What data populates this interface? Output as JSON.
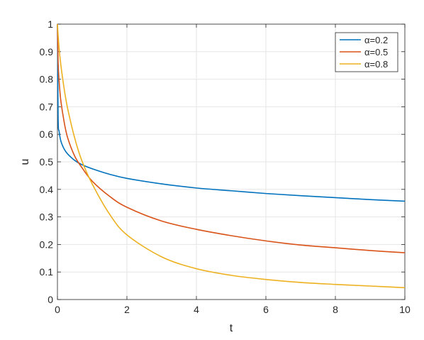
{
  "chart_data": {
    "type": "line",
    "title": "",
    "xlabel": "t",
    "ylabel": "u",
    "xlim": [
      0,
      10
    ],
    "ylim": [
      0,
      1
    ],
    "grid": true,
    "legend_position": "top-right",
    "x_ticks": [
      "0",
      "2",
      "4",
      "6",
      "8",
      "10"
    ],
    "y_ticks": [
      "0",
      "0.1",
      "0.2",
      "0.3",
      "0.4",
      "0.5",
      "0.6",
      "0.7",
      "0.8",
      "0.9",
      "1"
    ],
    "x": [
      0,
      0.02,
      0.05,
      0.1,
      0.2,
      0.3,
      0.5,
      0.7,
      1,
      1.5,
      2,
      3,
      4,
      5,
      6,
      7,
      8,
      9,
      10
    ],
    "series": [
      {
        "name": "α=0.2",
        "color": "#0072BD",
        "values": [
          1.0,
          0.66,
          0.61,
          0.575,
          0.545,
          0.528,
          0.505,
          0.49,
          0.475,
          0.455,
          0.44,
          0.42,
          0.405,
          0.395,
          0.385,
          0.377,
          0.37,
          0.363,
          0.357
        ]
      },
      {
        "name": "α=0.5",
        "color": "#D95319",
        "values": [
          1.0,
          0.86,
          0.79,
          0.72,
          0.64,
          0.585,
          0.52,
          0.48,
          0.43,
          0.375,
          0.335,
          0.285,
          0.255,
          0.232,
          0.213,
          0.198,
          0.188,
          0.178,
          0.17
        ]
      },
      {
        "name": "α=0.8",
        "color": "#EDB120",
        "values": [
          1.0,
          0.96,
          0.91,
          0.85,
          0.76,
          0.69,
          0.585,
          0.505,
          0.42,
          0.31,
          0.235,
          0.155,
          0.112,
          0.088,
          0.073,
          0.062,
          0.055,
          0.049,
          0.043
        ]
      }
    ]
  }
}
